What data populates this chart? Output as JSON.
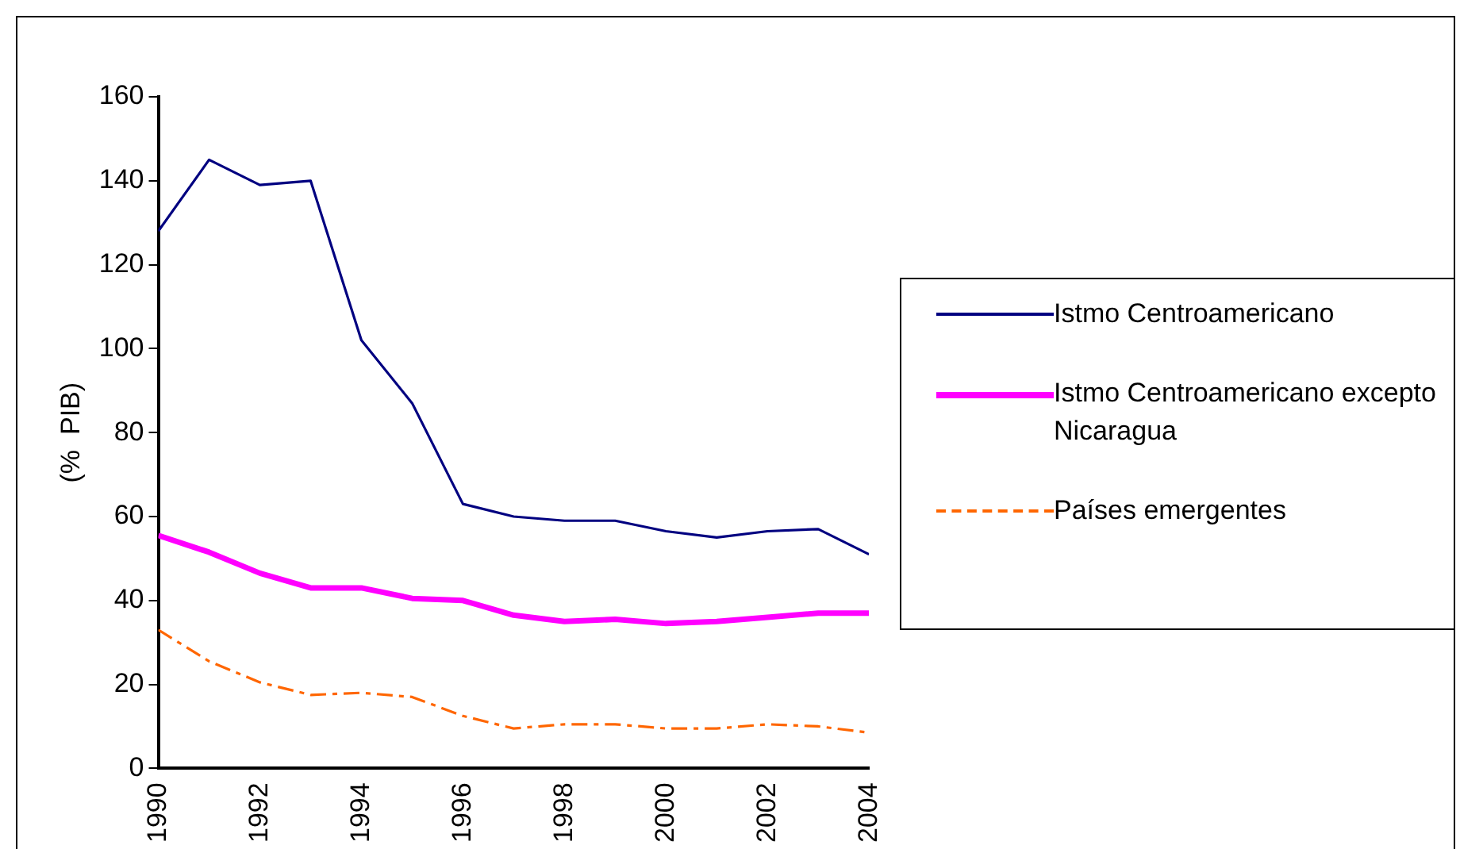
{
  "chart_data": {
    "type": "line",
    "ylabel": "(%  PIB)",
    "x": [
      1990,
      1991,
      1992,
      1993,
      1994,
      1995,
      1996,
      1997,
      1998,
      1999,
      2000,
      2001,
      2002,
      2003,
      2004
    ],
    "xlim": [
      1990,
      2004
    ],
    "xticks": [
      1990,
      1992,
      1994,
      1996,
      1998,
      2000,
      2002,
      2004
    ],
    "ylim": [
      0,
      160
    ],
    "yticks": [
      0,
      20,
      40,
      60,
      80,
      100,
      120,
      140,
      160
    ],
    "grid": false,
    "legend": "right",
    "marker": "none",
    "series": [
      {
        "name": "Istmo Centroamericano",
        "color": "#000080",
        "line_style": "solid",
        "values": [
          128,
          145,
          139,
          140,
          102,
          87,
          63,
          60,
          59,
          59,
          56.5,
          55,
          56.5,
          57,
          51
        ]
      },
      {
        "name": "Istmo Centroamericano excepto Nicaragua",
        "color": "#ff00ff",
        "line_style": "solid",
        "values": [
          55.5,
          51.5,
          46.5,
          43,
          43,
          40.5,
          40,
          36.5,
          35,
          35.5,
          34.5,
          35,
          36,
          37,
          37
        ]
      },
      {
        "name": "Países emergentes",
        "color": "#ff6600",
        "line_style": "dashed",
        "values": [
          33,
          25.5,
          20.5,
          17.5,
          18,
          17,
          12.5,
          9.5,
          10.5,
          10.5,
          9.5,
          9.5,
          10.5,
          10,
          8.5
        ]
      }
    ]
  }
}
